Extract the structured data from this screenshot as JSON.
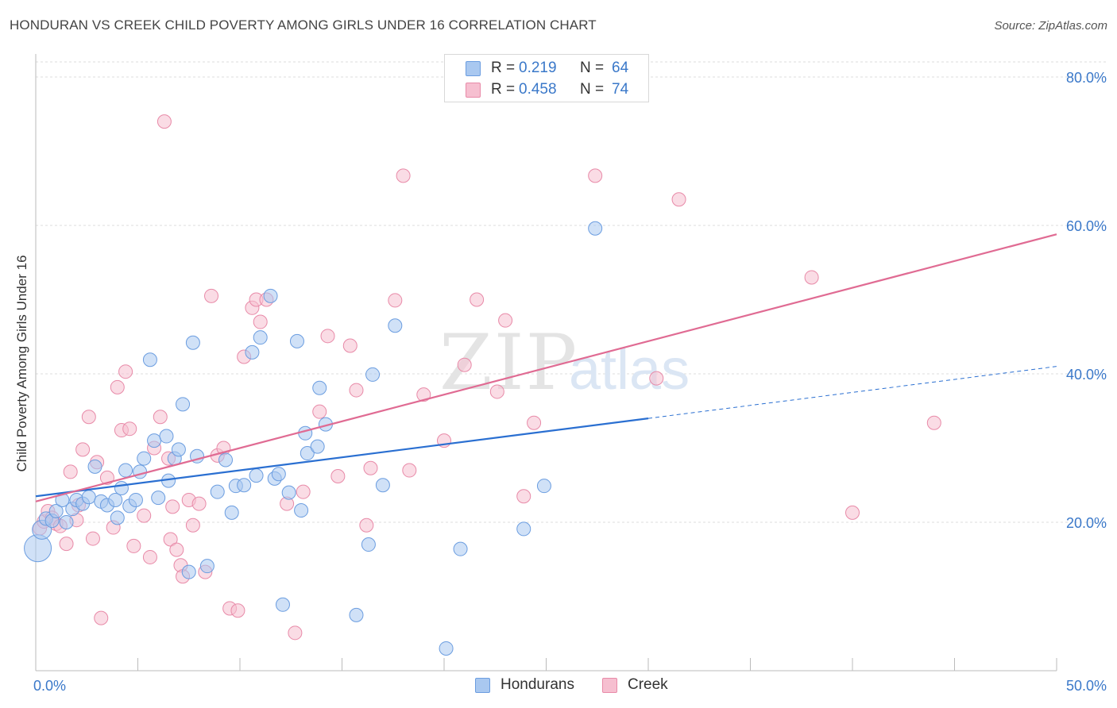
{
  "title": "HONDURAN VS CREEK CHILD POVERTY AMONG GIRLS UNDER 16 CORRELATION CHART",
  "source": "Source: ZipAtlas.com",
  "watermark": {
    "zip": "ZIP",
    "atlas": "atlas"
  },
  "legend_top": [
    {
      "r_label": "R =",
      "r_value": "0.219",
      "n_label": "N =",
      "n_value": "64"
    },
    {
      "r_label": "R =",
      "r_value": "0.458",
      "n_label": "N =",
      "n_value": "74"
    }
  ],
  "legend_bottom": [
    "Hondurans",
    "Creek"
  ],
  "colors": {
    "hondurans_fill": "#a9c8f0",
    "hondurans_stroke": "#6b9de0",
    "hondurans_line": "#2a6fd1",
    "creek_fill": "#f6bfd0",
    "creek_stroke": "#e88aa8",
    "creek_line": "#e06b93",
    "axis_text": "#3a78c9",
    "grid": "#dddddd"
  },
  "chart_data": {
    "type": "scatter",
    "title": "HONDURAN VS CREEK CHILD POVERTY AMONG GIRLS UNDER 16 CORRELATION CHART",
    "xlabel": "",
    "ylabel": "Child Poverty Among Girls Under 16",
    "xlim": [
      0,
      50
    ],
    "ylim": [
      0,
      80
    ],
    "x_tick_labels": [
      "0.0%",
      "50.0%"
    ],
    "y_tick_labels": [
      "20.0%",
      "40.0%",
      "60.0%",
      "80.0%"
    ],
    "y_ticks": [
      20,
      40,
      60,
      80
    ],
    "grid": true,
    "legend_position": "top-center",
    "series": [
      {
        "name": "Hondurans",
        "r": 0.219,
        "n": 64,
        "trend": {
          "x0": 0,
          "y0": 23.5,
          "x1": 30,
          "y1": 34.0,
          "dashed_to_x": 50,
          "dashed_to_y": 41.0
        },
        "points": [
          [
            0.1,
            16.5
          ],
          [
            0.3,
            19.0
          ],
          [
            0.5,
            20.5
          ],
          [
            0.8,
            20.2
          ],
          [
            1.0,
            21.5
          ],
          [
            1.3,
            23.0
          ],
          [
            1.5,
            20.0
          ],
          [
            1.8,
            21.8
          ],
          [
            2.0,
            23.0
          ],
          [
            2.3,
            22.5
          ],
          [
            2.6,
            23.4
          ],
          [
            2.9,
            27.5
          ],
          [
            3.2,
            22.8
          ],
          [
            3.5,
            22.3
          ],
          [
            3.9,
            23.0
          ],
          [
            4.0,
            20.6
          ],
          [
            4.2,
            24.6
          ],
          [
            4.4,
            27.0
          ],
          [
            4.6,
            22.2
          ],
          [
            4.9,
            23.0
          ],
          [
            5.1,
            26.8
          ],
          [
            5.3,
            28.6
          ],
          [
            5.6,
            41.9
          ],
          [
            5.8,
            31.0
          ],
          [
            6.0,
            23.3
          ],
          [
            6.4,
            31.6
          ],
          [
            6.5,
            25.6
          ],
          [
            6.8,
            28.6
          ],
          [
            7.0,
            29.8
          ],
          [
            7.2,
            35.9
          ],
          [
            7.5,
            13.3
          ],
          [
            7.7,
            44.2
          ],
          [
            7.9,
            28.9
          ],
          [
            8.4,
            14.1
          ],
          [
            8.9,
            24.1
          ],
          [
            9.3,
            28.4
          ],
          [
            9.6,
            21.3
          ],
          [
            9.8,
            24.9
          ],
          [
            10.2,
            25.0
          ],
          [
            10.6,
            42.9
          ],
          [
            10.8,
            26.3
          ],
          [
            11.0,
            44.9
          ],
          [
            11.5,
            50.5
          ],
          [
            11.7,
            25.9
          ],
          [
            11.9,
            26.5
          ],
          [
            12.1,
            8.9
          ],
          [
            12.4,
            24.0
          ],
          [
            12.8,
            44.4
          ],
          [
            13.0,
            21.6
          ],
          [
            13.2,
            32.0
          ],
          [
            13.3,
            29.3
          ],
          [
            13.8,
            30.2
          ],
          [
            13.9,
            38.1
          ],
          [
            14.2,
            33.2
          ],
          [
            15.7,
            7.5
          ],
          [
            16.3,
            17.0
          ],
          [
            16.5,
            39.9
          ],
          [
            17.0,
            25.0
          ],
          [
            17.6,
            46.5
          ],
          [
            20.1,
            3.0
          ],
          [
            20.8,
            16.4
          ],
          [
            23.9,
            19.1
          ],
          [
            24.9,
            24.9
          ],
          [
            27.4,
            59.6
          ]
        ]
      },
      {
        "name": "Creek",
        "r": 0.458,
        "n": 74,
        "trend": {
          "x0": 0,
          "y0": 22.8,
          "x1": 50,
          "y1": 58.8
        },
        "points": [
          [
            0.2,
            19.2
          ],
          [
            0.4,
            20.1
          ],
          [
            0.6,
            21.5
          ],
          [
            0.8,
            20.6
          ],
          [
            1.0,
            19.8
          ],
          [
            1.2,
            19.5
          ],
          [
            1.5,
            17.1
          ],
          [
            1.7,
            26.8
          ],
          [
            2.0,
            20.3
          ],
          [
            2.1,
            22.3
          ],
          [
            2.3,
            29.8
          ],
          [
            2.6,
            34.2
          ],
          [
            2.8,
            17.8
          ],
          [
            3.0,
            28.1
          ],
          [
            3.2,
            7.1
          ],
          [
            3.5,
            26.0
          ],
          [
            3.8,
            19.3
          ],
          [
            4.0,
            38.2
          ],
          [
            4.2,
            32.4
          ],
          [
            4.4,
            40.3
          ],
          [
            4.6,
            32.6
          ],
          [
            4.8,
            16.8
          ],
          [
            5.3,
            20.9
          ],
          [
            5.6,
            15.3
          ],
          [
            5.8,
            30.0
          ],
          [
            6.1,
            34.2
          ],
          [
            6.3,
            74.0
          ],
          [
            6.5,
            28.6
          ],
          [
            6.6,
            17.7
          ],
          [
            6.7,
            22.1
          ],
          [
            6.9,
            16.3
          ],
          [
            7.1,
            14.2
          ],
          [
            7.2,
            12.7
          ],
          [
            7.5,
            23.0
          ],
          [
            7.7,
            19.6
          ],
          [
            8.0,
            22.5
          ],
          [
            8.3,
            13.3
          ],
          [
            8.6,
            50.5
          ],
          [
            8.9,
            29.0
          ],
          [
            9.2,
            30.0
          ],
          [
            9.5,
            8.4
          ],
          [
            9.9,
            8.1
          ],
          [
            10.2,
            42.3
          ],
          [
            10.6,
            48.9
          ],
          [
            10.8,
            50.0
          ],
          [
            11.0,
            47.0
          ],
          [
            11.3,
            50.0
          ],
          [
            12.3,
            22.5
          ],
          [
            12.7,
            5.1
          ],
          [
            13.1,
            24.1
          ],
          [
            13.9,
            34.9
          ],
          [
            14.3,
            45.1
          ],
          [
            14.8,
            26.2
          ],
          [
            15.4,
            43.8
          ],
          [
            15.7,
            37.8
          ],
          [
            16.2,
            19.6
          ],
          [
            16.4,
            27.3
          ],
          [
            17.6,
            49.9
          ],
          [
            18.0,
            66.7
          ],
          [
            18.3,
            27.0
          ],
          [
            19.0,
            37.2
          ],
          [
            20.0,
            31.0
          ],
          [
            21.0,
            41.2
          ],
          [
            21.6,
            50.0
          ],
          [
            22.6,
            37.6
          ],
          [
            23.0,
            47.2
          ],
          [
            23.9,
            23.5
          ],
          [
            24.4,
            33.4
          ],
          [
            27.4,
            66.7
          ],
          [
            30.4,
            39.4
          ],
          [
            31.5,
            63.5
          ],
          [
            38.0,
            53.0
          ],
          [
            40.0,
            21.3
          ],
          [
            44.0,
            33.4
          ]
        ]
      }
    ]
  }
}
